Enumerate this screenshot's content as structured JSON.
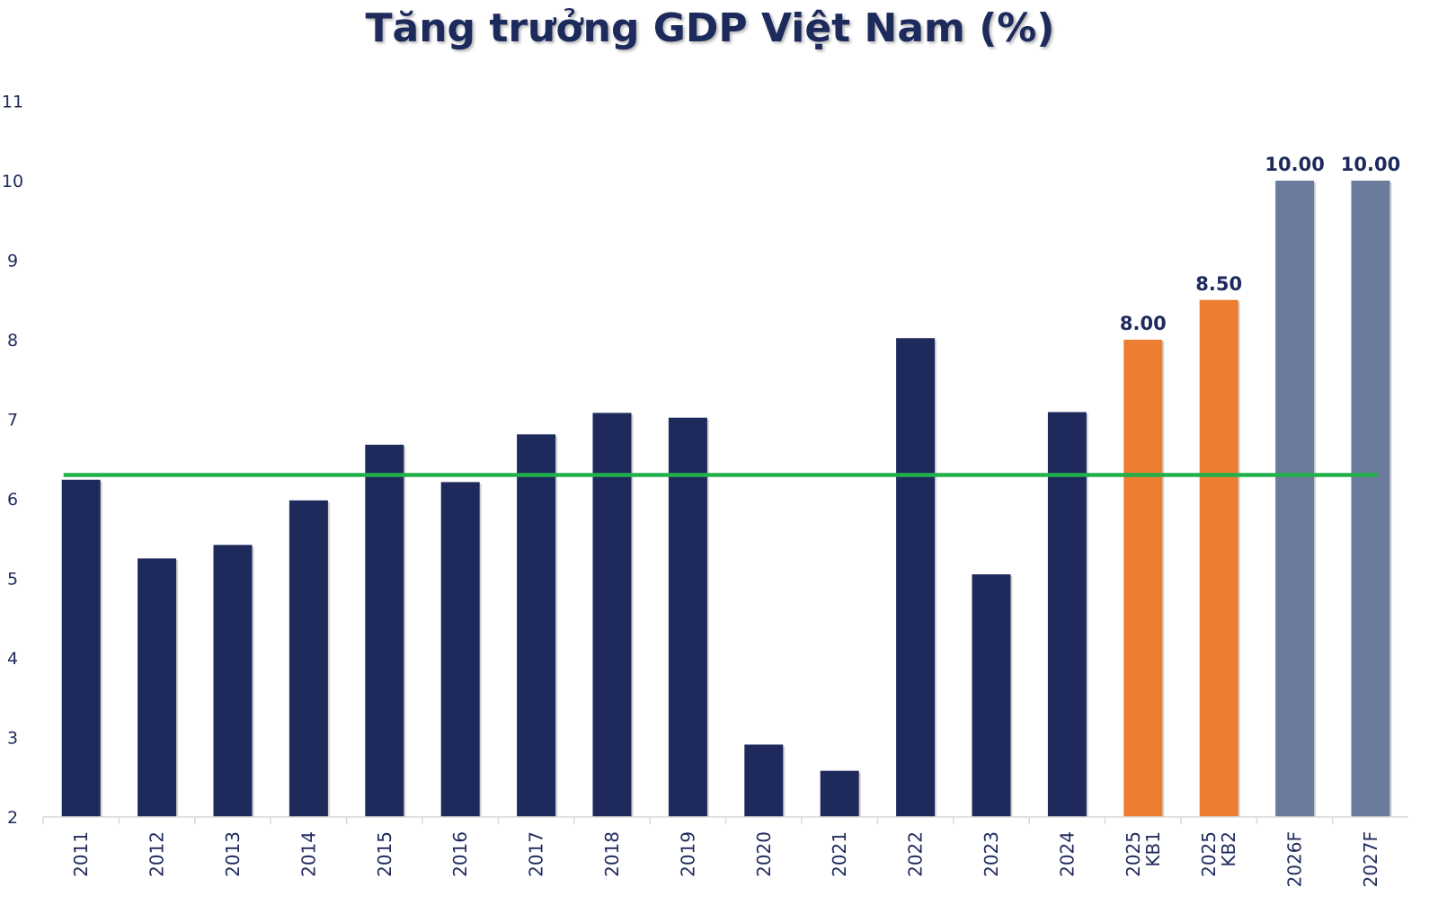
{
  "chart_data": {
    "type": "bar",
    "title": "Tăng trưởng GDP Việt Nam (%)",
    "xlabel": "",
    "ylabel": "",
    "ylim": [
      2,
      11
    ],
    "yticks": [
      "2",
      "3",
      "4",
      "5",
      "6",
      "7",
      "8",
      "9",
      "10",
      "11"
    ],
    "grid": false,
    "categories": [
      [
        "2011"
      ],
      [
        "2012"
      ],
      [
        "2013"
      ],
      [
        "2014"
      ],
      [
        "2015"
      ],
      [
        "2016"
      ],
      [
        "2017"
      ],
      [
        "2018"
      ],
      [
        "2019"
      ],
      [
        "2020"
      ],
      [
        "2021"
      ],
      [
        "2022"
      ],
      [
        "2023"
      ],
      [
        "2024"
      ],
      [
        "2025",
        "KB1"
      ],
      [
        "2025",
        "KB2"
      ],
      [
        "2026F"
      ],
      [
        "2027F"
      ]
    ],
    "values": [
      6.24,
      5.25,
      5.42,
      5.98,
      6.68,
      6.21,
      6.81,
      7.08,
      7.02,
      2.91,
      2.58,
      8.02,
      5.05,
      7.09,
      8.0,
      8.5,
      10.0,
      10.0
    ],
    "bar_groups": [
      "actual",
      "actual",
      "actual",
      "actual",
      "actual",
      "actual",
      "actual",
      "actual",
      "actual",
      "actual",
      "actual",
      "actual",
      "actual",
      "actual",
      "scenario",
      "scenario",
      "forecast",
      "forecast"
    ],
    "data_labels": [
      "",
      "",
      "",
      "",
      "",
      "",
      "",
      "",
      "",
      "",
      "",
      "",
      "",
      "",
      "8.00",
      "8.50",
      "10.00",
      "10.00"
    ],
    "reference_line": {
      "name": "average",
      "value": 6.3
    },
    "colors": {
      "actual": "#1f2a5c",
      "scenario": "#ed7d31",
      "forecast": "#6b7b9c",
      "reference_line": "#22b04b",
      "text": "#1f2a5c"
    }
  }
}
